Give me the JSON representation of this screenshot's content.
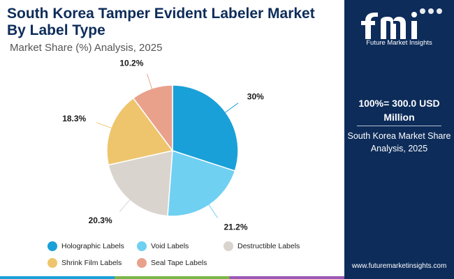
{
  "header": {
    "title": "South Korea Tamper Evident Labeler Market By Label Type",
    "subtitle": "Market Share (%) Analysis, 2025"
  },
  "side_panel": {
    "brand_name": "Future Market Insights",
    "total": "100%= 300.0 USD Million",
    "description": "South Korea Market Share Analysis, 2025",
    "website": "www.futuremarketinsights.com"
  },
  "chart_data": {
    "type": "pie",
    "title": "South Korea Tamper Evident Labeler Market By Label Type",
    "subtitle": "Market Share (%) Analysis, 2025",
    "categories": [
      "Holographic Labels",
      "Void Labels",
      "Destructible Labels",
      "Shrink Film Labels",
      "Seal Tape Labels"
    ],
    "values": [
      30,
      21.2,
      20.3,
      18.3,
      10.2
    ],
    "value_labels": [
      "30%",
      "21.2%",
      "20.3%",
      "18.3%",
      "10.2%"
    ],
    "colors": [
      "#1aa0d8",
      "#6fd0f2",
      "#dad4cf",
      "#eec56c",
      "#e9a18c"
    ],
    "legend_position": "bottom"
  },
  "colors": {
    "navy": "#0d2c5a",
    "bar_colors": [
      "#1aa0d8",
      "#7ab648",
      "#9b59b6"
    ]
  }
}
